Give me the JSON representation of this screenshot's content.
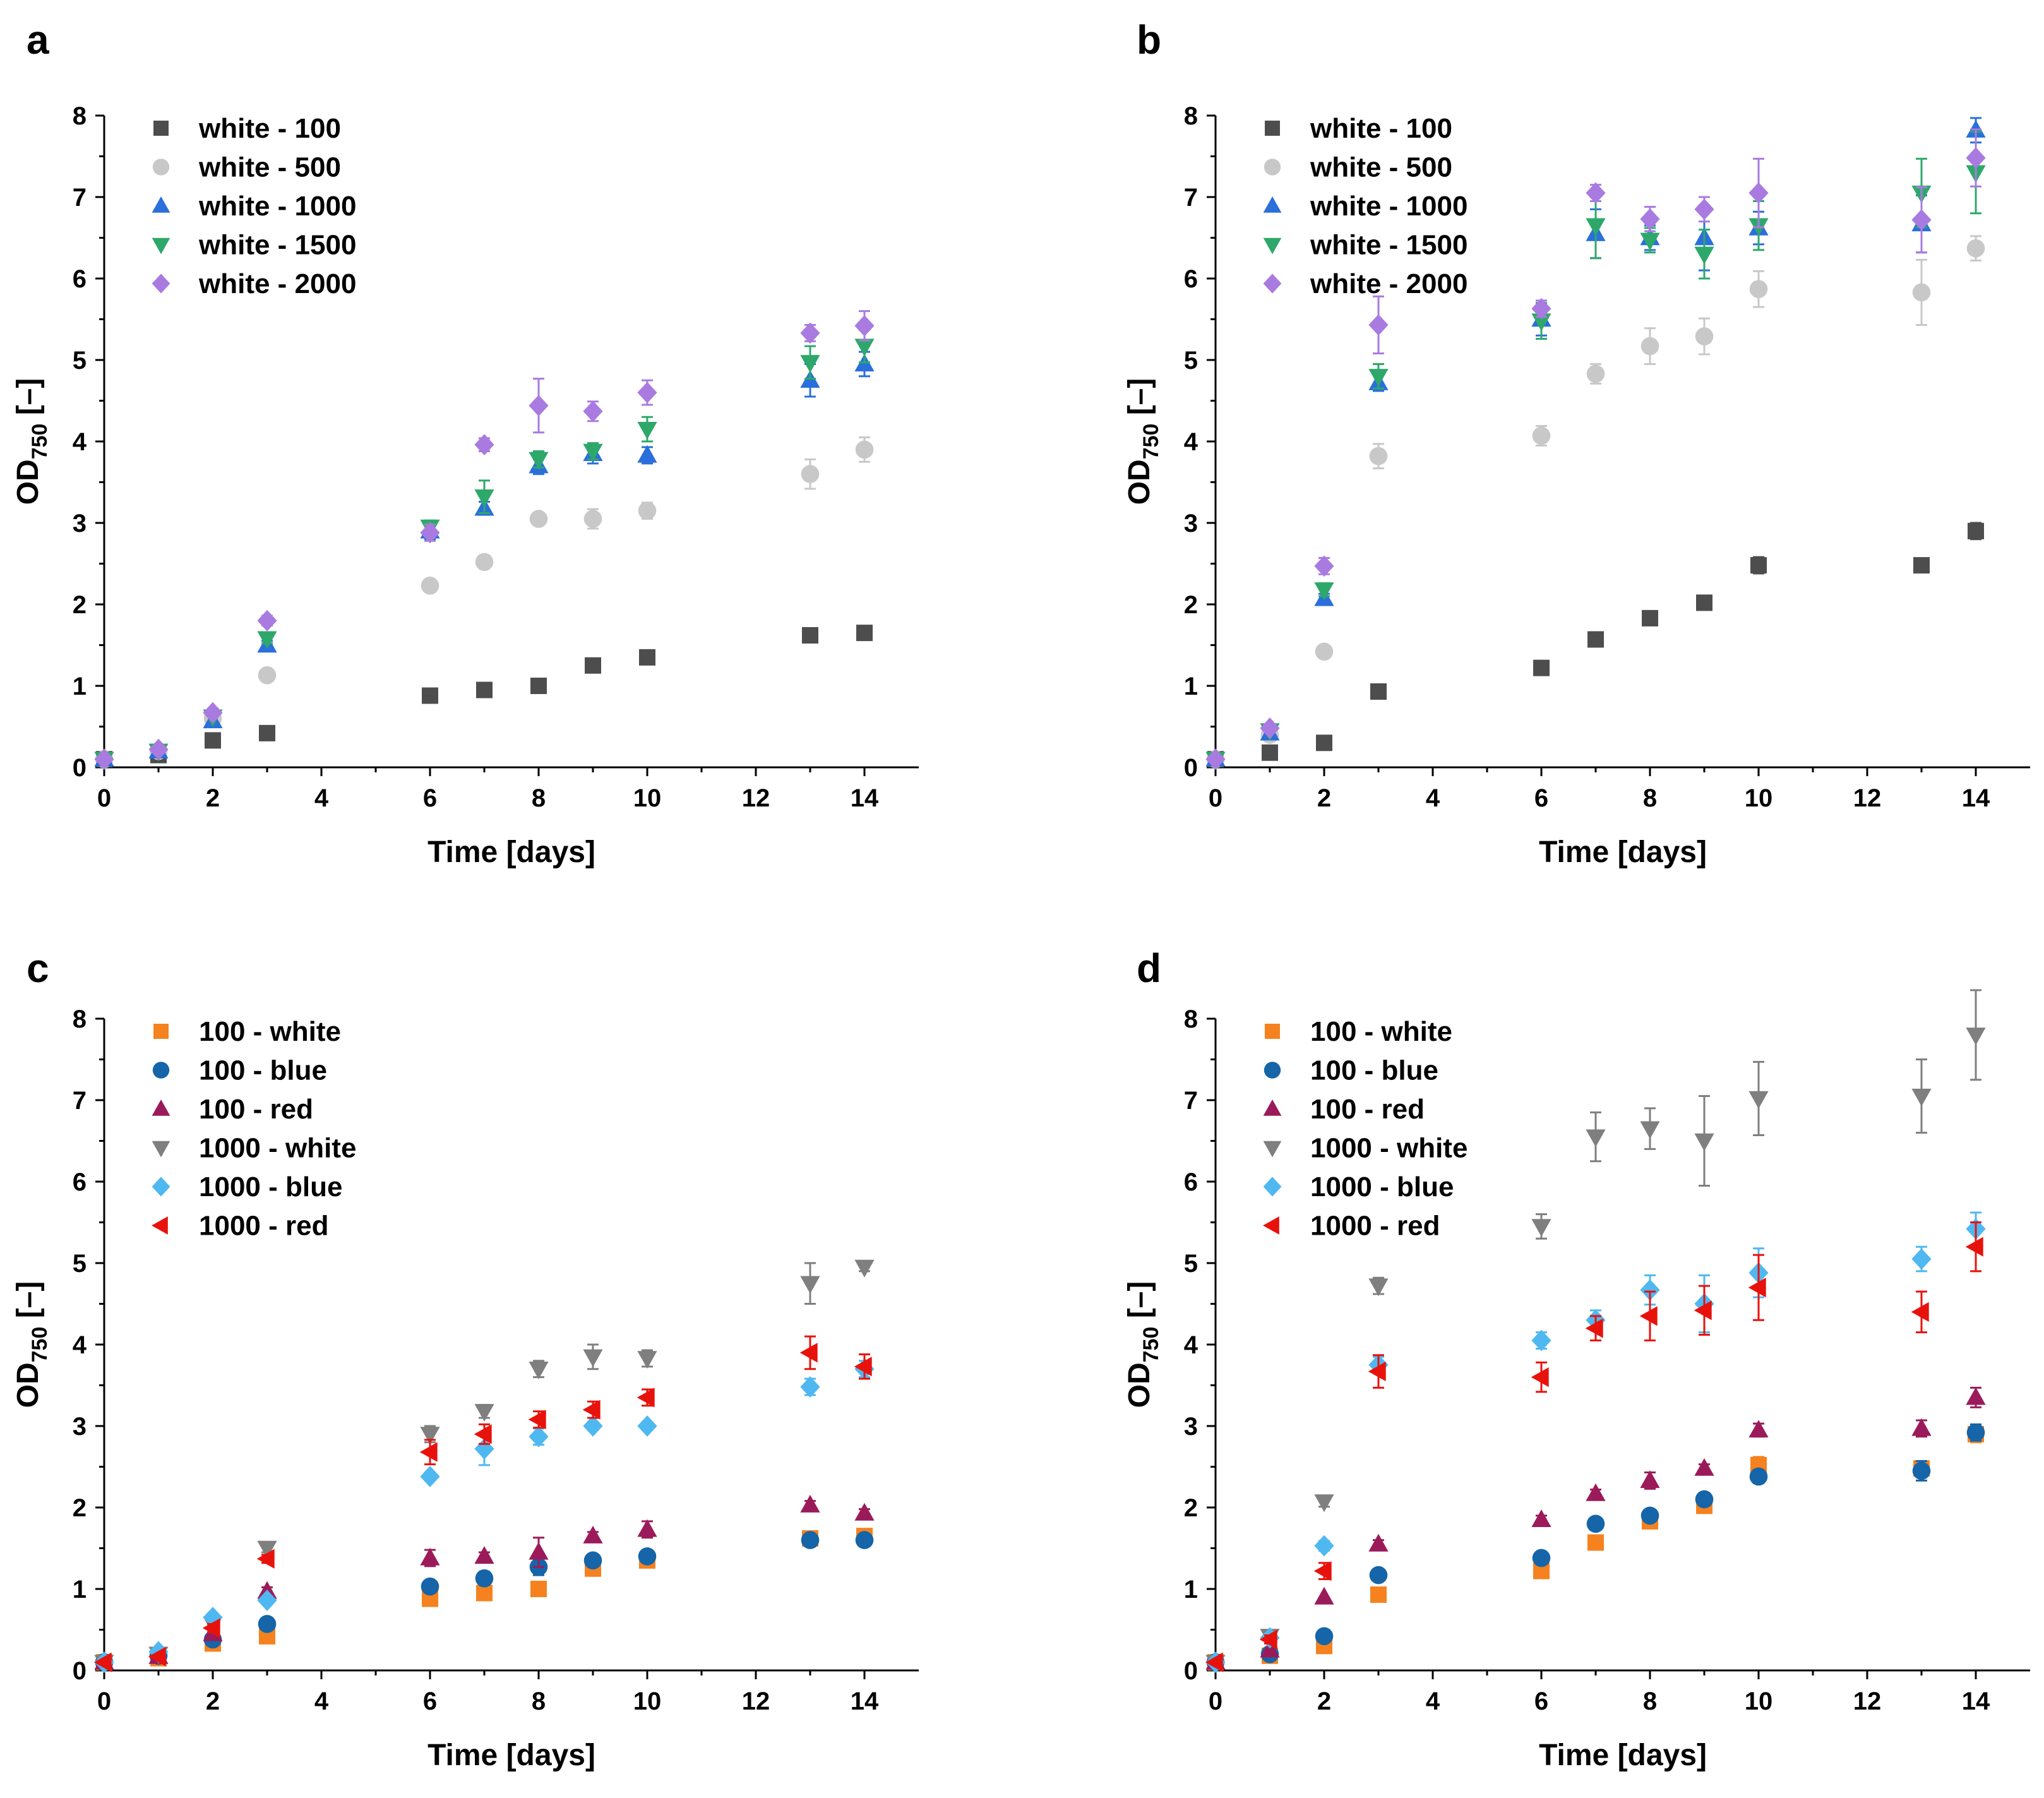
{
  "figure": {
    "panels": [
      "a",
      "b",
      "c",
      "d"
    ]
  },
  "chart_data": [
    {
      "panel": "a",
      "type": "scatter",
      "xlabel": "Time [days]",
      "ylabel_main": "OD",
      "ylabel_sub": "750",
      "ylabel_unit": " [–]",
      "xlim": [
        0,
        15
      ],
      "ylim": [
        0,
        8
      ],
      "xticks": [
        0,
        2,
        4,
        6,
        8,
        10,
        12,
        14
      ],
      "yticks": [
        0,
        1,
        2,
        3,
        4,
        5,
        6,
        7,
        8
      ],
      "legend_position": "top-left",
      "series": [
        {
          "name": "white - 100",
          "marker": "square",
          "color": "#4d4d4d",
          "x": [
            0,
            1,
            2,
            3,
            6,
            7,
            8,
            9,
            10,
            13,
            14
          ],
          "y": [
            0.1,
            0.15,
            0.33,
            0.42,
            0.88,
            0.95,
            1.0,
            1.25,
            1.35,
            1.62,
            1.65
          ],
          "err": [
            0.02,
            0.02,
            0.03,
            0.03,
            0.05,
            0.05,
            0.05,
            0.05,
            0.05,
            0.05,
            0.05
          ]
        },
        {
          "name": "white - 500",
          "marker": "circle",
          "color": "#c8c8c8",
          "x": [
            0,
            1,
            2,
            3,
            6,
            7,
            8,
            9,
            10,
            13,
            14
          ],
          "y": [
            0.1,
            0.2,
            0.6,
            1.13,
            2.23,
            2.52,
            3.05,
            3.05,
            3.15,
            3.6,
            3.9
          ],
          "err": [
            0.02,
            0.02,
            0.04,
            0.05,
            0.06,
            0.08,
            0.06,
            0.12,
            0.1,
            0.18,
            0.15
          ]
        },
        {
          "name": "white - 1000",
          "marker": "triangle-up",
          "color": "#2a6fdb",
          "x": [
            0,
            1,
            2,
            3,
            6,
            7,
            8,
            9,
            10,
            13,
            14
          ],
          "y": [
            0.1,
            0.2,
            0.57,
            1.5,
            2.9,
            3.18,
            3.7,
            3.85,
            3.83,
            4.75,
            4.95
          ],
          "err": [
            0.02,
            0.02,
            0.04,
            0.05,
            0.1,
            0.08,
            0.1,
            0.12,
            0.1,
            0.2,
            0.15
          ]
        },
        {
          "name": "white - 1500",
          "marker": "triangle-down",
          "color": "#2ea86a",
          "x": [
            0,
            1,
            2,
            3,
            6,
            7,
            8,
            9,
            10,
            13,
            14
          ],
          "y": [
            0.1,
            0.2,
            0.62,
            1.58,
            2.95,
            3.32,
            3.78,
            3.88,
            4.15,
            4.97,
            5.17
          ],
          "err": [
            0.02,
            0.02,
            0.04,
            0.06,
            0.08,
            0.2,
            0.1,
            0.1,
            0.15,
            0.2,
            0.2
          ]
        },
        {
          "name": "white - 2000",
          "marker": "diamond",
          "color": "#a97be0",
          "x": [
            0,
            1,
            2,
            3,
            6,
            7,
            8,
            9,
            10,
            13,
            14
          ],
          "y": [
            0.1,
            0.22,
            0.67,
            1.8,
            2.88,
            3.96,
            4.44,
            4.37,
            4.6,
            5.33,
            5.42
          ],
          "err": [
            0.02,
            0.02,
            0.05,
            0.06,
            0.1,
            0.08,
            0.33,
            0.12,
            0.15,
            0.1,
            0.18
          ]
        }
      ]
    },
    {
      "panel": "b",
      "type": "scatter",
      "xlabel": "Time [days]",
      "ylabel_main": "OD",
      "ylabel_sub": "750",
      "ylabel_unit": " [–]",
      "xlim": [
        0,
        15
      ],
      "ylim": [
        0,
        8
      ],
      "xticks": [
        0,
        2,
        4,
        6,
        8,
        10,
        12,
        14
      ],
      "yticks": [
        0,
        1,
        2,
        3,
        4,
        5,
        6,
        7,
        8
      ],
      "legend_position": "top-left",
      "series": [
        {
          "name": "white - 100",
          "marker": "square",
          "color": "#4d4d4d",
          "x": [
            0,
            1,
            2,
            3,
            6,
            7,
            8,
            9,
            10,
            13,
            14
          ],
          "y": [
            0.1,
            0.18,
            0.3,
            0.93,
            1.22,
            1.57,
            1.83,
            2.02,
            2.48,
            2.48,
            2.9
          ],
          "err": [
            0.02,
            0.02,
            0.03,
            0.05,
            0.05,
            0.05,
            0.05,
            0.05,
            0.1,
            0.05,
            0.1
          ]
        },
        {
          "name": "white - 500",
          "marker": "circle",
          "color": "#c8c8c8",
          "x": [
            0,
            1,
            2,
            3,
            6,
            7,
            8,
            9,
            10,
            13,
            14
          ],
          "y": [
            0.1,
            0.4,
            1.42,
            3.82,
            4.07,
            4.83,
            5.17,
            5.29,
            5.87,
            5.83,
            6.37
          ],
          "err": [
            0.02,
            0.03,
            0.05,
            0.15,
            0.12,
            0.12,
            0.22,
            0.22,
            0.22,
            0.4,
            0.15
          ]
        },
        {
          "name": "white - 1000",
          "marker": "triangle-up",
          "color": "#2a6fdb",
          "x": [
            0,
            1,
            2,
            3,
            6,
            7,
            8,
            9,
            10,
            13,
            14
          ],
          "y": [
            0.1,
            0.42,
            2.07,
            4.72,
            5.5,
            6.55,
            6.5,
            6.5,
            6.62,
            6.67,
            7.82
          ],
          "err": [
            0.02,
            0.03,
            0.06,
            0.1,
            0.2,
            0.3,
            0.15,
            0.4,
            0.2,
            0.35,
            0.15
          ]
        },
        {
          "name": "white - 1500",
          "marker": "triangle-down",
          "color": "#2ea86a",
          "x": [
            0,
            1,
            2,
            3,
            6,
            7,
            8,
            9,
            10,
            13,
            14
          ],
          "y": [
            0.1,
            0.45,
            2.18,
            4.8,
            5.48,
            6.65,
            6.47,
            6.3,
            6.65,
            7.05,
            7.3
          ],
          "err": [
            0.02,
            0.03,
            0.08,
            0.15,
            0.22,
            0.4,
            0.15,
            0.3,
            0.3,
            0.42,
            0.5
          ]
        },
        {
          "name": "white - 2000",
          "marker": "diamond",
          "color": "#a97be0",
          "x": [
            0,
            1,
            2,
            3,
            6,
            7,
            8,
            9,
            10,
            13,
            14
          ],
          "y": [
            0.1,
            0.48,
            2.47,
            5.43,
            5.63,
            7.05,
            6.73,
            6.85,
            7.05,
            6.72,
            7.48
          ],
          "err": [
            0.02,
            0.03,
            0.1,
            0.35,
            0.1,
            0.1,
            0.15,
            0.15,
            0.42,
            0.4,
            0.35
          ]
        }
      ]
    },
    {
      "panel": "c",
      "type": "scatter",
      "xlabel": "Time [days]",
      "ylabel_main": "OD",
      "ylabel_sub": "750",
      "ylabel_unit": " [–]",
      "xlim": [
        0,
        15
      ],
      "ylim": [
        0,
        8
      ],
      "xticks": [
        0,
        2,
        4,
        6,
        8,
        10,
        12,
        14
      ],
      "yticks": [
        0,
        1,
        2,
        3,
        4,
        5,
        6,
        7,
        8
      ],
      "legend_position": "top-left",
      "series": [
        {
          "name": "100 - white",
          "marker": "square",
          "color": "#f5821f",
          "x": [
            0,
            1,
            2,
            3,
            6,
            7,
            8,
            9,
            10,
            13,
            14
          ],
          "y": [
            0.1,
            0.15,
            0.33,
            0.42,
            0.88,
            0.95,
            1.0,
            1.25,
            1.35,
            1.62,
            1.65
          ],
          "err": [
            0.02,
            0.02,
            0.03,
            0.03,
            0.05,
            0.05,
            0.05,
            0.05,
            0.05,
            0.05,
            0.05
          ]
        },
        {
          "name": "100 - blue",
          "marker": "circle",
          "color": "#1565a8",
          "x": [
            0,
            1,
            2,
            3,
            6,
            7,
            8,
            9,
            10,
            13,
            14
          ],
          "y": [
            0.1,
            0.18,
            0.38,
            0.57,
            1.03,
            1.13,
            1.27,
            1.35,
            1.4,
            1.6,
            1.6
          ],
          "err": [
            0.02,
            0.02,
            0.03,
            0.04,
            0.05,
            0.08,
            0.1,
            0.06,
            0.05,
            0.05,
            0.05
          ]
        },
        {
          "name": "100 - red",
          "marker": "triangle-up",
          "color": "#9b1b5a",
          "x": [
            0,
            1,
            2,
            3,
            6,
            7,
            8,
            9,
            10,
            13,
            14
          ],
          "y": [
            0.1,
            0.17,
            0.45,
            0.97,
            1.38,
            1.4,
            1.45,
            1.65,
            1.73,
            2.03,
            1.93
          ],
          "err": [
            0.02,
            0.02,
            0.04,
            0.05,
            0.1,
            0.05,
            0.18,
            0.05,
            0.1,
            0.05,
            0.05
          ]
        },
        {
          "name": "1000 - white",
          "marker": "triangle-down",
          "color": "#7f7f7f",
          "x": [
            0,
            1,
            2,
            3,
            6,
            7,
            8,
            9,
            10,
            13,
            14
          ],
          "y": [
            0.1,
            0.2,
            0.57,
            1.5,
            2.9,
            3.18,
            3.7,
            3.85,
            3.83,
            4.75,
            4.95
          ],
          "err": [
            0.02,
            0.02,
            0.04,
            0.05,
            0.1,
            0.08,
            0.1,
            0.15,
            0.1,
            0.25,
            0.05
          ]
        },
        {
          "name": "1000 - blue",
          "marker": "diamond",
          "color": "#4fb8f0",
          "x": [
            0,
            1,
            2,
            3,
            6,
            7,
            8,
            9,
            10,
            13,
            14
          ],
          "y": [
            0.1,
            0.23,
            0.65,
            0.86,
            2.38,
            2.72,
            2.87,
            3.0,
            3.0,
            3.48,
            3.7
          ],
          "err": [
            0.02,
            0.02,
            0.05,
            0.05,
            0.05,
            0.2,
            0.1,
            0.05,
            0.05,
            0.1,
            0.1
          ]
        },
        {
          "name": "1000 - red",
          "marker": "triangle-left",
          "color": "#e8120c",
          "x": [
            0,
            1,
            2,
            3,
            6,
            7,
            8,
            9,
            10,
            13,
            14
          ],
          "y": [
            0.1,
            0.17,
            0.52,
            1.37,
            2.68,
            2.9,
            3.08,
            3.2,
            3.35,
            3.9,
            3.73
          ],
          "err": [
            0.02,
            0.02,
            0.05,
            0.05,
            0.15,
            0.12,
            0.1,
            0.1,
            0.1,
            0.2,
            0.15
          ]
        }
      ]
    },
    {
      "panel": "d",
      "type": "scatter",
      "xlabel": "Time [days]",
      "ylabel_main": "OD",
      "ylabel_sub": "750",
      "ylabel_unit": " [–]",
      "xlim": [
        0,
        15
      ],
      "ylim": [
        0,
        8
      ],
      "xticks": [
        0,
        2,
        4,
        6,
        8,
        10,
        12,
        14
      ],
      "yticks": [
        0,
        1,
        2,
        3,
        4,
        5,
        6,
        7,
        8
      ],
      "legend_position": "top-left",
      "series": [
        {
          "name": "100 - white",
          "marker": "square",
          "color": "#f5821f",
          "x": [
            0,
            1,
            2,
            3,
            6,
            7,
            8,
            9,
            10,
            13,
            14
          ],
          "y": [
            0.1,
            0.18,
            0.3,
            0.93,
            1.22,
            1.57,
            1.83,
            2.02,
            2.52,
            2.48,
            2.9
          ],
          "err": [
            0.02,
            0.02,
            0.03,
            0.05,
            0.05,
            0.05,
            0.05,
            0.05,
            0.1,
            0.05,
            0.1
          ]
        },
        {
          "name": "100 - blue",
          "marker": "circle",
          "color": "#1565a8",
          "x": [
            0,
            1,
            2,
            3,
            6,
            7,
            8,
            9,
            10,
            13,
            14
          ],
          "y": [
            0.1,
            0.2,
            0.42,
            1.17,
            1.38,
            1.8,
            1.9,
            2.1,
            2.38,
            2.45,
            2.92
          ],
          "err": [
            0.02,
            0.02,
            0.03,
            0.05,
            0.05,
            0.05,
            0.05,
            0.08,
            0.08,
            0.12,
            0.1
          ]
        },
        {
          "name": "100 - red",
          "marker": "triangle-up",
          "color": "#9b1b5a",
          "x": [
            0,
            1,
            2,
            3,
            6,
            7,
            8,
            9,
            10,
            13,
            14
          ],
          "y": [
            0.1,
            0.25,
            0.9,
            1.55,
            1.85,
            2.17,
            2.33,
            2.48,
            2.95,
            2.97,
            3.35
          ],
          "err": [
            0.02,
            0.02,
            0.04,
            0.05,
            0.05,
            0.05,
            0.1,
            0.05,
            0.08,
            0.1,
            0.12
          ]
        },
        {
          "name": "1000 - white",
          "marker": "triangle-down",
          "color": "#7f7f7f",
          "x": [
            0,
            1,
            2,
            3,
            6,
            7,
            8,
            9,
            10,
            13,
            14
          ],
          "y": [
            0.1,
            0.42,
            2.07,
            4.72,
            5.45,
            6.55,
            6.65,
            6.5,
            7.02,
            7.05,
            7.8
          ],
          "err": [
            0.02,
            0.03,
            0.06,
            0.1,
            0.15,
            0.3,
            0.25,
            0.55,
            0.45,
            0.45,
            0.55
          ]
        },
        {
          "name": "1000 - blue",
          "marker": "diamond",
          "color": "#4fb8f0",
          "x": [
            0,
            1,
            2,
            3,
            6,
            7,
            8,
            9,
            10,
            13,
            14
          ],
          "y": [
            0.1,
            0.4,
            1.53,
            3.75,
            4.05,
            4.3,
            4.67,
            4.5,
            4.88,
            5.05,
            5.42
          ],
          "err": [
            0.02,
            0.03,
            0.06,
            0.1,
            0.1,
            0.12,
            0.18,
            0.35,
            0.3,
            0.15,
            0.2
          ]
        },
        {
          "name": "1000 - red",
          "marker": "triangle-left",
          "color": "#e8120c",
          "x": [
            0,
            1,
            2,
            3,
            6,
            7,
            8,
            9,
            10,
            13,
            14
          ],
          "y": [
            0.1,
            0.38,
            1.22,
            3.67,
            3.6,
            4.2,
            4.35,
            4.42,
            4.7,
            4.4,
            5.2
          ],
          "err": [
            0.02,
            0.05,
            0.1,
            0.2,
            0.18,
            0.15,
            0.3,
            0.3,
            0.4,
            0.25,
            0.3
          ]
        }
      ]
    }
  ]
}
